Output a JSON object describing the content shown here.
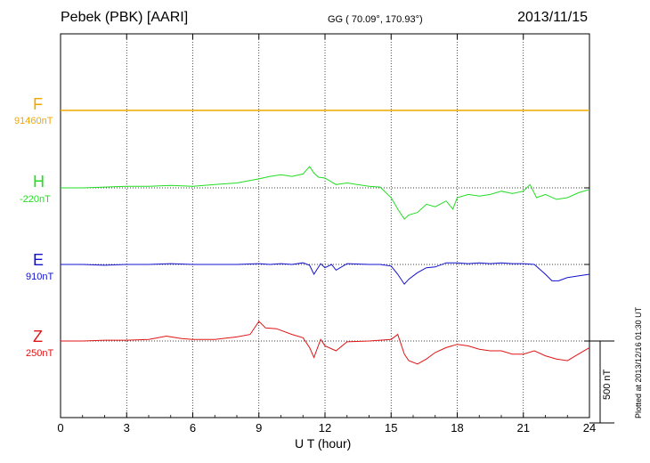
{
  "header": {
    "title": "Pebek (PBK)  [AARI]",
    "coords": "GG ( 70.09°, 170.93°)",
    "date": "2013/11/15"
  },
  "plotted_note": "Plotted at 2013/12/16 01:30 UT",
  "scale_bar": {
    "label": "500 nT",
    "value_nT": 500
  },
  "colors": {
    "F": "#f0a800",
    "H": "#22dd22",
    "E": "#1111cc",
    "Z": "#e01515",
    "grid": "#000000"
  },
  "chart_data": {
    "type": "line",
    "title": "Pebek (PBK)  [AARI]",
    "xlabel": "U T (hour)",
    "xlim": [
      0,
      24
    ],
    "xticks": [
      0,
      3,
      6,
      9,
      12,
      15,
      18,
      21,
      24
    ],
    "xtick_labels": [
      "0",
      "3",
      "6",
      "9",
      "12",
      "15",
      "18",
      "21",
      "24"
    ],
    "grid": true,
    "series": [
      {
        "name": "F",
        "baseline": "91460nT",
        "x": [
          0,
          24
        ],
        "y_nT": [
          0,
          0
        ]
      },
      {
        "name": "H",
        "baseline": "-220nT",
        "x": [
          0,
          1,
          2,
          3,
          4,
          5,
          6,
          7,
          8,
          9,
          9.5,
          10,
          10.5,
          11,
          11.3,
          11.5,
          11.7,
          12,
          12.5,
          13,
          14,
          14.5,
          15,
          15.3,
          15.6,
          15.8,
          16.2,
          16.6,
          17,
          17.5,
          17.8,
          18,
          18.5,
          19,
          19.5,
          20,
          20.5,
          21,
          21.3,
          21.6,
          22,
          22.5,
          23,
          23.5,
          24
        ],
        "y_nT": [
          0,
          0,
          5,
          10,
          10,
          15,
          10,
          20,
          30,
          55,
          70,
          80,
          70,
          85,
          130,
          90,
          65,
          60,
          20,
          30,
          10,
          5,
          -60,
          -130,
          -190,
          -165,
          -150,
          -100,
          -115,
          -80,
          -130,
          -60,
          -40,
          -50,
          -40,
          -20,
          -35,
          -20,
          20,
          -60,
          -40,
          -70,
          -60,
          -30,
          -10
        ]
      },
      {
        "name": "E",
        "baseline": "910nT",
        "x": [
          0,
          1,
          2,
          3,
          4,
          5,
          6,
          7,
          8,
          9,
          9.5,
          10,
          10.5,
          11,
          11.3,
          11.5,
          11.8,
          12,
          12.3,
          12.5,
          13,
          14,
          14.5,
          15,
          15.3,
          15.6,
          15.8,
          16.2,
          16.6,
          17,
          17.5,
          18,
          18.5,
          19,
          19.5,
          20,
          20.5,
          21,
          21.5,
          22,
          22.3,
          22.6,
          23,
          23.5,
          24
        ],
        "y_nT": [
          0,
          0,
          -5,
          0,
          0,
          5,
          0,
          0,
          0,
          5,
          0,
          5,
          0,
          10,
          -5,
          -60,
          5,
          -20,
          0,
          -35,
          5,
          0,
          0,
          -10,
          -60,
          -120,
          -90,
          -50,
          -20,
          -15,
          10,
          10,
          5,
          10,
          5,
          10,
          5,
          5,
          0,
          -60,
          -100,
          -100,
          -80,
          -70,
          -60
        ]
      },
      {
        "name": "Z",
        "baseline": "250nT",
        "x": [
          0,
          1,
          2,
          3,
          4,
          4.8,
          5.5,
          6,
          7,
          8,
          8.6,
          9,
          9.3,
          9.8,
          10.5,
          11,
          11.3,
          11.5,
          11.8,
          12,
          12.5,
          13,
          14,
          15,
          15.3,
          15.6,
          15.8,
          16.2,
          16.6,
          17,
          17.5,
          18,
          18.5,
          19,
          19.5,
          20,
          20.5,
          21,
          21.5,
          22,
          22.5,
          23,
          23.5,
          24
        ],
        "y_nT": [
          0,
          0,
          5,
          5,
          10,
          30,
          15,
          10,
          10,
          25,
          40,
          120,
          80,
          75,
          40,
          20,
          -40,
          -100,
          10,
          -30,
          -60,
          -5,
          0,
          10,
          40,
          -80,
          -120,
          -140,
          -110,
          -70,
          -40,
          -20,
          -30,
          -50,
          -60,
          -60,
          -80,
          -80,
          -60,
          -90,
          -110,
          -120,
          -80,
          -40
        ]
      }
    ]
  }
}
